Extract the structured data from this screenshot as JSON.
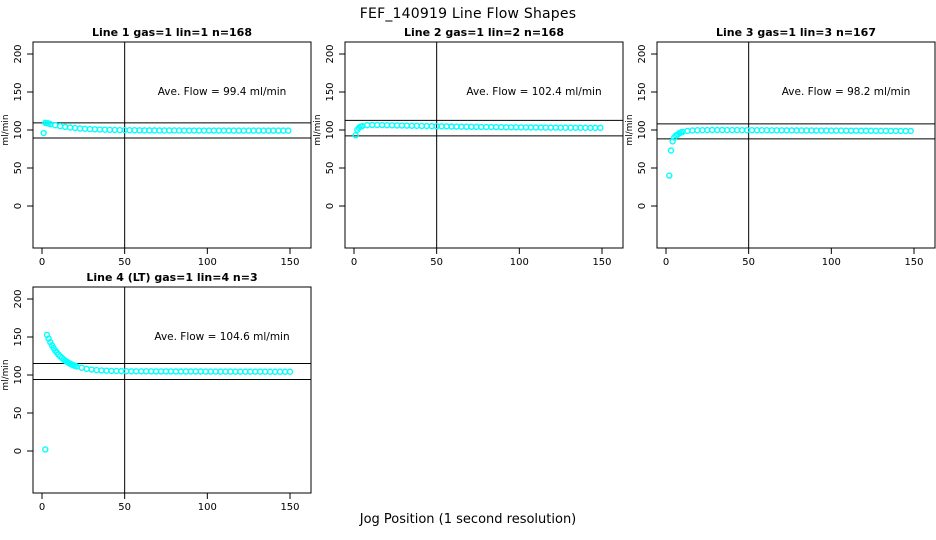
{
  "page": {
    "main_title": "FEF_140919  Line Flow Shapes",
    "x_axis_caption": "Jog Position (1 second resolution)"
  },
  "style": {
    "point_color": "#00ffff",
    "axis_color": "#000000",
    "background": "#ffffff"
  },
  "chart_data": [
    {
      "type": "scatter",
      "title": "Line 1 gas=1 lin=1 n=168",
      "gas": 1,
      "lin": 1,
      "n": 168,
      "annotation": "Ave. Flow =  99.4  ml/min",
      "ave_flow_ml_min": 99.4,
      "ylabel": "ml/min",
      "yticks": [
        0,
        50,
        100,
        150,
        200
      ],
      "xticks": [
        0,
        50,
        100,
        150
      ],
      "ylim": [
        0,
        200
      ],
      "xlim": [
        0,
        150
      ],
      "grid": false,
      "ref_vline_x": 50,
      "ref_hlines": [
        109.3,
        89.5
      ],
      "outliers": [
        [
          1,
          96
        ]
      ],
      "points": [
        [
          2,
          109.4
        ],
        [
          3,
          109.0
        ],
        [
          4,
          108.6
        ],
        [
          5,
          107.7
        ],
        [
          8,
          106.3
        ],
        [
          11,
          105.1
        ],
        [
          14,
          104.1
        ],
        [
          17,
          103.3
        ],
        [
          20,
          102.6
        ],
        [
          23,
          102.0
        ],
        [
          26,
          101.6
        ],
        [
          29,
          101.2
        ],
        [
          32,
          100.9
        ],
        [
          35,
          100.6
        ],
        [
          38,
          100.4
        ],
        [
          41,
          100.2
        ],
        [
          44,
          100.1
        ],
        [
          47,
          99.9
        ],
        [
          50,
          99.8
        ],
        [
          53,
          99.7
        ],
        [
          56,
          99.7
        ],
        [
          59,
          99.6
        ],
        [
          62,
          99.5
        ],
        [
          65,
          99.5
        ],
        [
          68,
          99.5
        ],
        [
          71,
          99.4
        ],
        [
          74,
          99.4
        ],
        [
          77,
          99.4
        ],
        [
          80,
          99.4
        ],
        [
          83,
          99.4
        ],
        [
          86,
          99.3
        ],
        [
          89,
          99.3
        ],
        [
          92,
          99.3
        ],
        [
          95,
          99.3
        ],
        [
          98,
          99.3
        ],
        [
          101,
          99.3
        ],
        [
          104,
          99.3
        ],
        [
          107,
          99.3
        ],
        [
          110,
          99.3
        ],
        [
          113,
          99.3
        ],
        [
          116,
          99.2
        ],
        [
          119,
          99.2
        ],
        [
          122,
          99.2
        ],
        [
          125,
          99.2
        ],
        [
          128,
          99.2
        ],
        [
          131,
          99.2
        ],
        [
          134,
          99.2
        ],
        [
          137,
          99.2
        ],
        [
          140,
          99.2
        ],
        [
          143,
          99.2
        ],
        [
          146,
          99.2
        ],
        [
          149,
          99.2
        ]
      ]
    },
    {
      "type": "scatter",
      "title": "Line 2 gas=1 lin=2 n=168",
      "gas": 1,
      "lin": 2,
      "n": 168,
      "annotation": "Ave. Flow =  102.4  ml/min",
      "ave_flow_ml_min": 102.4,
      "ylabel": "ml/min",
      "yticks": [
        0,
        50,
        100,
        150,
        200
      ],
      "xticks": [
        0,
        50,
        100,
        150
      ],
      "ylim": [
        0,
        200
      ],
      "xlim": [
        0,
        150
      ],
      "grid": false,
      "ref_vline_x": 50,
      "ref_hlines": [
        112.6,
        92.2
      ],
      "outliers": [
        [
          1,
          93
        ]
      ],
      "points": [
        [
          2,
          100.3
        ],
        [
          3,
          103.0
        ],
        [
          4,
          104.4
        ],
        [
          5,
          105.2
        ],
        [
          8,
          106.4
        ],
        [
          11,
          106.6
        ],
        [
          14,
          106.6
        ],
        [
          17,
          106.5
        ],
        [
          20,
          106.3
        ],
        [
          23,
          106.2
        ],
        [
          26,
          106.0
        ],
        [
          29,
          105.9
        ],
        [
          32,
          105.7
        ],
        [
          35,
          105.6
        ],
        [
          38,
          105.5
        ],
        [
          41,
          105.3
        ],
        [
          44,
          105.2
        ],
        [
          47,
          105.1
        ],
        [
          50,
          105.0
        ],
        [
          53,
          104.9
        ],
        [
          56,
          104.8
        ],
        [
          59,
          104.6
        ],
        [
          62,
          104.5
        ],
        [
          65,
          104.4
        ],
        [
          68,
          104.3
        ],
        [
          71,
          104.2
        ],
        [
          74,
          104.1
        ],
        [
          77,
          104.0
        ],
        [
          80,
          103.9
        ],
        [
          83,
          103.9
        ],
        [
          86,
          103.8
        ],
        [
          89,
          103.7
        ],
        [
          92,
          103.6
        ],
        [
          95,
          103.6
        ],
        [
          98,
          103.5
        ],
        [
          101,
          103.4
        ],
        [
          104,
          103.4
        ],
        [
          107,
          103.3
        ],
        [
          110,
          103.3
        ],
        [
          113,
          103.2
        ],
        [
          116,
          103.2
        ],
        [
          119,
          103.1
        ],
        [
          122,
          103.1
        ],
        [
          125,
          103.0
        ],
        [
          128,
          103.0
        ],
        [
          131,
          103.0
        ],
        [
          134,
          102.9
        ],
        [
          137,
          102.9
        ],
        [
          140,
          102.9
        ],
        [
          143,
          102.8
        ],
        [
          146,
          102.8
        ],
        [
          149,
          102.8
        ]
      ]
    },
    {
      "type": "scatter",
      "title": "Line 3 gas=1 lin=3 n=167",
      "gas": 1,
      "lin": 3,
      "n": 167,
      "annotation": "Ave. Flow =  98.2  ml/min",
      "ave_flow_ml_min": 98.2,
      "ylabel": "ml/min",
      "yticks": [
        0,
        50,
        100,
        150,
        200
      ],
      "xticks": [
        0,
        50,
        100,
        150
      ],
      "ylim": [
        0,
        200
      ],
      "xlim": [
        0,
        150
      ],
      "grid": false,
      "ref_vline_x": 50,
      "ref_hlines": [
        108.0,
        88.4
      ],
      "outliers": [
        [
          2,
          40
        ],
        [
          3,
          73
        ]
      ],
      "points": [
        [
          4,
          85.0
        ],
        [
          5,
          90.0
        ],
        [
          6,
          92.8
        ],
        [
          7,
          94.0
        ],
        [
          8,
          95.8
        ],
        [
          9,
          96.8
        ],
        [
          10,
          97.5
        ],
        [
          13,
          98.8
        ],
        [
          16,
          99.4
        ],
        [
          19,
          99.7
        ],
        [
          22,
          99.8
        ],
        [
          25,
          99.9
        ],
        [
          28,
          100.0
        ],
        [
          31,
          100.0
        ],
        [
          34,
          100.0
        ],
        [
          37,
          99.9
        ],
        [
          40,
          99.9
        ],
        [
          43,
          99.9
        ],
        [
          46,
          99.8
        ],
        [
          49,
          99.8
        ],
        [
          52,
          99.8
        ],
        [
          55,
          99.7
        ],
        [
          58,
          99.7
        ],
        [
          61,
          99.7
        ],
        [
          64,
          99.6
        ],
        [
          67,
          99.6
        ],
        [
          70,
          99.6
        ],
        [
          73,
          99.5
        ],
        [
          76,
          99.5
        ],
        [
          79,
          99.5
        ],
        [
          82,
          99.4
        ],
        [
          85,
          99.4
        ],
        [
          88,
          99.4
        ],
        [
          91,
          99.3
        ],
        [
          94,
          99.3
        ],
        [
          97,
          99.3
        ],
        [
          100,
          99.2
        ],
        [
          103,
          99.2
        ],
        [
          106,
          99.2
        ],
        [
          109,
          99.1
        ],
        [
          112,
          99.1
        ],
        [
          115,
          99.1
        ],
        [
          118,
          99.0
        ],
        [
          121,
          99.0
        ],
        [
          124,
          99.0
        ],
        [
          127,
          98.9
        ],
        [
          130,
          98.9
        ],
        [
          133,
          98.9
        ],
        [
          136,
          98.8
        ],
        [
          139,
          98.8
        ],
        [
          142,
          98.8
        ],
        [
          145,
          98.7
        ],
        [
          148,
          98.7
        ]
      ]
    },
    {
      "type": "scatter",
      "title": "Line 4 (LT) gas=1 lin=4 n=3",
      "gas": 1,
      "lin": 4,
      "n": 3,
      "annotation": "Ave. Flow =  104.6  ml/min",
      "ave_flow_ml_min": 104.6,
      "ylabel": "ml/min",
      "yticks": [
        0,
        50,
        100,
        150,
        200
      ],
      "xticks": [
        0,
        50,
        100,
        150
      ],
      "ylim": [
        0,
        200
      ],
      "xlim": [
        0,
        150
      ],
      "grid": false,
      "ref_vline_x": 50,
      "ref_hlines": [
        115.1,
        94.1
      ],
      "outliers": [
        [
          2,
          2
        ]
      ],
      "points": [
        [
          3,
          152.8
        ],
        [
          4,
          147.8
        ],
        [
          5,
          143.2
        ],
        [
          6,
          139.2
        ],
        [
          7,
          135.6
        ],
        [
          8,
          132.3
        ],
        [
          9,
          129.4
        ],
        [
          10,
          126.9
        ],
        [
          11,
          124.5
        ],
        [
          12,
          122.5
        ],
        [
          13,
          120.6
        ],
        [
          14,
          118.9
        ],
        [
          15,
          117.5
        ],
        [
          16,
          116.1
        ],
        [
          17,
          114.9
        ],
        [
          18,
          113.9
        ],
        [
          19,
          112.9
        ],
        [
          20,
          112.1
        ],
        [
          21,
          111.3
        ],
        [
          24,
          109.5
        ],
        [
          27,
          108.1
        ],
        [
          30,
          107.2
        ],
        [
          33,
          106.5
        ],
        [
          36,
          106.0
        ],
        [
          39,
          105.7
        ],
        [
          42,
          105.4
        ],
        [
          45,
          105.3
        ],
        [
          48,
          105.1
        ],
        [
          51,
          105.0
        ],
        [
          54,
          104.9
        ],
        [
          57,
          104.9
        ],
        [
          60,
          104.8
        ],
        [
          63,
          104.8
        ],
        [
          66,
          104.8
        ],
        [
          69,
          104.7
        ],
        [
          72,
          104.7
        ],
        [
          75,
          104.7
        ],
        [
          78,
          104.7
        ],
        [
          81,
          104.6
        ],
        [
          84,
          104.6
        ],
        [
          87,
          104.6
        ],
        [
          90,
          104.6
        ],
        [
          93,
          104.6
        ],
        [
          96,
          104.6
        ],
        [
          99,
          104.5
        ],
        [
          102,
          104.5
        ],
        [
          105,
          104.5
        ],
        [
          108,
          104.5
        ],
        [
          111,
          104.5
        ],
        [
          114,
          104.5
        ],
        [
          117,
          104.4
        ],
        [
          120,
          104.4
        ],
        [
          123,
          104.4
        ],
        [
          126,
          104.4
        ],
        [
          129,
          104.4
        ],
        [
          132,
          104.4
        ],
        [
          135,
          104.3
        ],
        [
          138,
          104.3
        ],
        [
          141,
          104.3
        ],
        [
          144,
          104.3
        ],
        [
          147,
          104.3
        ],
        [
          150,
          104.3
        ]
      ]
    }
  ]
}
